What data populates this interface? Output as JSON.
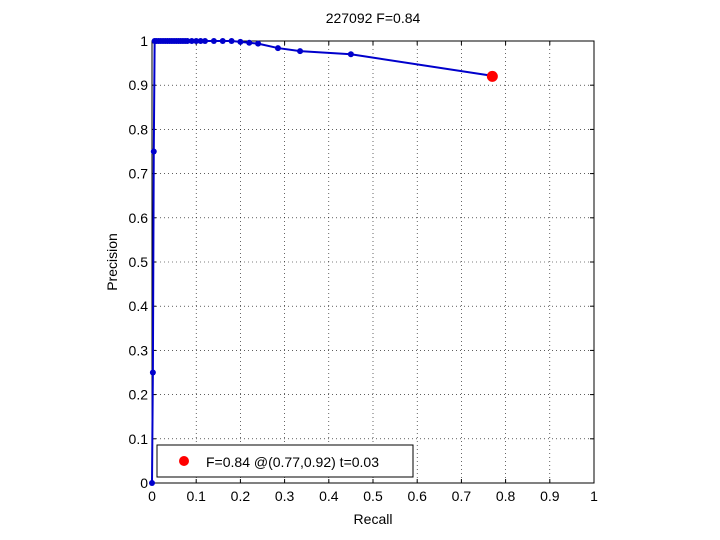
{
  "chart_data": {
    "type": "line",
    "title": "227092 F=0.84",
    "xlabel": "Recall",
    "ylabel": "Precision",
    "xlim": [
      0,
      1
    ],
    "ylim": [
      0,
      1
    ],
    "xticks": [
      "0",
      "0.1",
      "0.2",
      "0.3",
      "0.4",
      "0.5",
      "0.6",
      "0.7",
      "0.8",
      "0.9",
      "1"
    ],
    "yticks": [
      "0",
      "0.1",
      "0.2",
      "0.3",
      "0.4",
      "0.5",
      "0.6",
      "0.7",
      "0.8",
      "0.9",
      "1"
    ],
    "grid": true,
    "legend_position": "bottom-left",
    "series": [
      {
        "color": "#0000cc",
        "x": [
          0,
          0.002,
          0.004,
          0.006,
          0.01,
          0.015,
          0.02,
          0.025,
          0.03,
          0.035,
          0.04,
          0.045,
          0.05,
          0.055,
          0.06,
          0.065,
          0.07,
          0.075,
          0.08,
          0.09,
          0.1,
          0.11,
          0.12,
          0.14,
          0.16,
          0.18,
          0.2,
          0.22,
          0.24,
          0.285,
          0.335,
          0.45,
          0.765
        ],
        "y": [
          0,
          0.25,
          0.75,
          1.0,
          1.0,
          1.0,
          1.0,
          1.0,
          1.0,
          1.0,
          1.0,
          1.0,
          1.0,
          1.0,
          1.0,
          1.0,
          1.0,
          1.0,
          1.0,
          1.0,
          1.0,
          1.0,
          1.0,
          1.0,
          1.0,
          1.0,
          0.998,
          0.996,
          0.994,
          0.984,
          0.977,
          0.97,
          0.922
        ]
      }
    ],
    "highlight": {
      "x": 0.77,
      "y": 0.92,
      "color": "#ff0000"
    },
    "legend": {
      "label": "F=0.84 @(0.77,0.92) t=0.03"
    }
  }
}
